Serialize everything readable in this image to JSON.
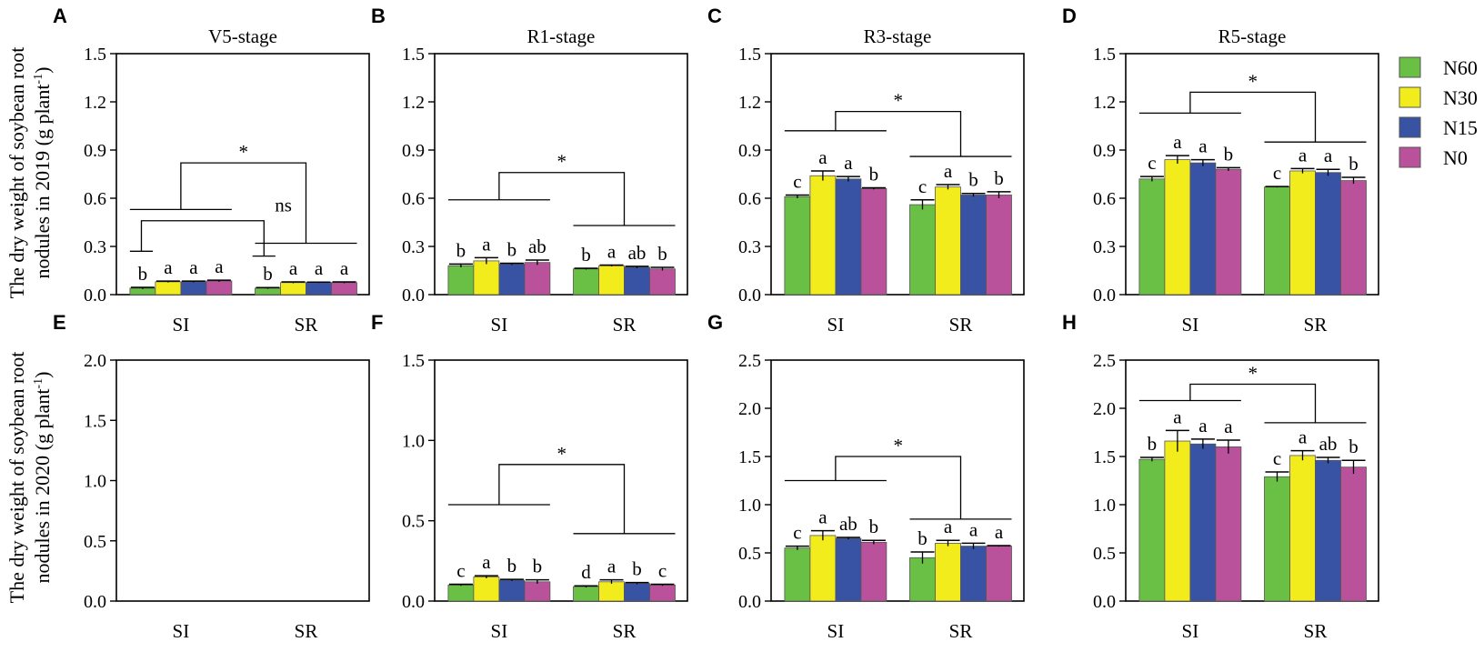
{
  "chart_data": [
    {
      "panel": "A",
      "type": "bar",
      "title": "V5-stage",
      "ylim": [
        0,
        1.5
      ],
      "yticks": [
        "0.0",
        "0.3",
        "0.6",
        "0.9",
        "1.2",
        "1.5"
      ],
      "categories": [
        "SI",
        "SR"
      ],
      "series": [
        {
          "name": "N60",
          "values": [
            0.04,
            0.04
          ],
          "err": [
            0.005,
            0.004
          ],
          "letters": [
            "b",
            "b"
          ]
        },
        {
          "name": "N30",
          "values": [
            0.08,
            0.075
          ],
          "err": [
            0.004,
            0.004
          ],
          "letters": [
            "a",
            "a"
          ]
        },
        {
          "name": "N15",
          "values": [
            0.08,
            0.075
          ],
          "err": [
            0.004,
            0.003
          ],
          "letters": [
            "a",
            "a"
          ]
        },
        {
          "name": "N0",
          "values": [
            0.085,
            0.075
          ],
          "err": [
            0.005,
            0.004
          ],
          "letters": [
            "a",
            "a"
          ]
        }
      ],
      "brackets": [
        {
          "label": "ns",
          "span": "first",
          "left": 0.27,
          "right": 0.24,
          "top": 0.46,
          "label_pos": "right"
        },
        {
          "label": "*",
          "span": "group",
          "left": 0.53,
          "right": 0.32,
          "top": 0.82,
          "label_pos": "center"
        }
      ]
    },
    {
      "panel": "B",
      "type": "bar",
      "title": "R1-stage",
      "ylim": [
        0,
        1.5
      ],
      "yticks": [
        "0.0",
        "0.3",
        "0.6",
        "0.9",
        "1.2",
        "1.5"
      ],
      "categories": [
        "SI",
        "SR"
      ],
      "series": [
        {
          "name": "N60",
          "values": [
            0.18,
            0.16
          ],
          "err": [
            0.01,
            0.004
          ],
          "letters": [
            "b",
            "b"
          ]
        },
        {
          "name": "N30",
          "values": [
            0.21,
            0.18
          ],
          "err": [
            0.02,
            0.004
          ],
          "letters": [
            "a",
            "a"
          ]
        },
        {
          "name": "N15",
          "values": [
            0.19,
            0.17
          ],
          "err": [
            0.005,
            0.006
          ],
          "letters": [
            "b",
            "ab"
          ]
        },
        {
          "name": "N0",
          "values": [
            0.2,
            0.16
          ],
          "err": [
            0.015,
            0.01
          ],
          "letters": [
            "ab",
            "b"
          ]
        }
      ],
      "brackets": [
        {
          "label": "*",
          "span": "group",
          "left": 0.59,
          "right": 0.43,
          "top": 0.76,
          "label_pos": "center"
        }
      ]
    },
    {
      "panel": "C",
      "type": "bar",
      "title": "R3-stage",
      "ylim": [
        0,
        1.5
      ],
      "yticks": [
        "0.0",
        "0.3",
        "0.6",
        "0.9",
        "1.2",
        "1.5"
      ],
      "categories": [
        "SI",
        "SR"
      ],
      "series": [
        {
          "name": "N60",
          "values": [
            0.61,
            0.56
          ],
          "err": [
            0.01,
            0.03
          ],
          "letters": [
            "c",
            "c"
          ]
        },
        {
          "name": "N30",
          "values": [
            0.74,
            0.67
          ],
          "err": [
            0.03,
            0.015
          ],
          "letters": [
            "a",
            "a"
          ]
        },
        {
          "name": "N15",
          "values": [
            0.72,
            0.62
          ],
          "err": [
            0.015,
            0.01
          ],
          "letters": [
            "a",
            "b"
          ]
        },
        {
          "name": "N0",
          "values": [
            0.66,
            0.62
          ],
          "err": [
            0.005,
            0.02
          ],
          "letters": [
            "b",
            "b"
          ]
        }
      ],
      "brackets": [
        {
          "label": "*",
          "span": "group",
          "left": 1.02,
          "right": 0.86,
          "top": 1.14,
          "label_pos": "center"
        }
      ]
    },
    {
      "panel": "D",
      "type": "bar",
      "title": "R5-stage",
      "ylim": [
        0,
        1.5
      ],
      "yticks": [
        "0.0",
        "0.3",
        "0.6",
        "0.9",
        "1.2",
        "1.5"
      ],
      "categories": [
        "SI",
        "SR"
      ],
      "series": [
        {
          "name": "N60",
          "values": [
            0.72,
            0.67
          ],
          "err": [
            0.015,
            0.003
          ],
          "letters": [
            "c",
            "c"
          ]
        },
        {
          "name": "N30",
          "values": [
            0.84,
            0.77
          ],
          "err": [
            0.025,
            0.015
          ],
          "letters": [
            "a",
            "a"
          ]
        },
        {
          "name": "N15",
          "values": [
            0.82,
            0.76
          ],
          "err": [
            0.02,
            0.02
          ],
          "letters": [
            "a",
            "a"
          ]
        },
        {
          "name": "N0",
          "values": [
            0.78,
            0.71
          ],
          "err": [
            0.01,
            0.02
          ],
          "letters": [
            "b",
            "b"
          ]
        }
      ],
      "brackets": [
        {
          "label": "*",
          "span": "group",
          "left": 1.13,
          "right": 0.95,
          "top": 1.26,
          "label_pos": "center"
        }
      ]
    },
    {
      "panel": "E",
      "type": "bar",
      "title": "",
      "ylim": [
        0,
        2.0
      ],
      "yticks": [
        "0.0",
        "0.5",
        "1.0",
        "1.5",
        "2.0"
      ],
      "categories": [
        "SI",
        "SR"
      ],
      "series": [],
      "brackets": []
    },
    {
      "panel": "F",
      "type": "bar",
      "title": "",
      "ylim": [
        0,
        1.5
      ],
      "yticks": [
        "0.0",
        "0.5",
        "1.0",
        "1.5"
      ],
      "categories": [
        "SI",
        "SR"
      ],
      "series": [
        {
          "name": "N60",
          "values": [
            0.1,
            0.09
          ],
          "err": [
            0.005,
            0.005
          ],
          "letters": [
            "c",
            "d"
          ]
        },
        {
          "name": "N30",
          "values": [
            0.15,
            0.12
          ],
          "err": [
            0.008,
            0.012
          ],
          "letters": [
            "a",
            "a"
          ]
        },
        {
          "name": "N15",
          "values": [
            0.13,
            0.11
          ],
          "err": [
            0.005,
            0.005
          ],
          "letters": [
            "b",
            "b"
          ]
        },
        {
          "name": "N0",
          "values": [
            0.12,
            0.1
          ],
          "err": [
            0.012,
            0.005
          ],
          "letters": [
            "b",
            "c"
          ]
        }
      ],
      "brackets": [
        {
          "label": "*",
          "span": "group",
          "left": 0.6,
          "right": 0.42,
          "top": 0.85,
          "label_pos": "center"
        }
      ]
    },
    {
      "panel": "G",
      "type": "bar",
      "title": "",
      "ylim": [
        0,
        2.5
      ],
      "yticks": [
        "0.0",
        "0.5",
        "1.0",
        "1.5",
        "2.0",
        "2.5"
      ],
      "categories": [
        "SI",
        "SR"
      ],
      "series": [
        {
          "name": "N60",
          "values": [
            0.55,
            0.45
          ],
          "err": [
            0.02,
            0.06
          ],
          "letters": [
            "c",
            "b"
          ]
        },
        {
          "name": "N30",
          "values": [
            0.68,
            0.6
          ],
          "err": [
            0.05,
            0.03
          ],
          "letters": [
            "a",
            "a"
          ]
        },
        {
          "name": "N15",
          "values": [
            0.65,
            0.57
          ],
          "err": [
            0.01,
            0.03
          ],
          "letters": [
            "ab",
            "a"
          ]
        },
        {
          "name": "N0",
          "values": [
            0.61,
            0.57
          ],
          "err": [
            0.02,
            0.005
          ],
          "letters": [
            "b",
            "a"
          ]
        }
      ],
      "brackets": [
        {
          "label": "*",
          "span": "group",
          "left": 1.25,
          "right": 0.85,
          "top": 1.5,
          "label_pos": "center"
        }
      ]
    },
    {
      "panel": "H",
      "type": "bar",
      "title": "",
      "ylim": [
        0,
        2.5
      ],
      "yticks": [
        "0.0",
        "0.5",
        "1.0",
        "1.5",
        "2.0",
        "2.5"
      ],
      "categories": [
        "SI",
        "SR"
      ],
      "series": [
        {
          "name": "N60",
          "values": [
            1.47,
            1.29
          ],
          "err": [
            0.02,
            0.05
          ],
          "letters": [
            "b",
            "c"
          ]
        },
        {
          "name": "N30",
          "values": [
            1.66,
            1.51
          ],
          "err": [
            0.11,
            0.05
          ],
          "letters": [
            "a",
            "a"
          ]
        },
        {
          "name": "N15",
          "values": [
            1.63,
            1.46
          ],
          "err": [
            0.05,
            0.03
          ],
          "letters": [
            "a",
            "ab"
          ]
        },
        {
          "name": "N0",
          "values": [
            1.6,
            1.39
          ],
          "err": [
            0.07,
            0.07
          ],
          "letters": [
            "a",
            "b"
          ]
        }
      ],
      "brackets": [
        {
          "label": "*",
          "span": "group",
          "left": 2.08,
          "right": 1.85,
          "top": 2.25,
          "label_pos": "center"
        }
      ]
    }
  ],
  "legend": [
    {
      "name": "N60",
      "color": "#6abf45"
    },
    {
      "name": "N30",
      "color": "#f2ec1c"
    },
    {
      "name": "N15",
      "color": "#3953a4"
    },
    {
      "name": "N0",
      "color": "#b9529b"
    }
  ],
  "ylabels": {
    "top": {
      "line1": "The dry weight of soybean root",
      "line2": "nodules in 2019 (g plant",
      "sup": "-1",
      "close": ")"
    },
    "bottom": {
      "line1": "The dry weight of soybean root",
      "line2": "nodules in 2020 (g plant",
      "sup": "-1",
      "close": ")"
    }
  }
}
